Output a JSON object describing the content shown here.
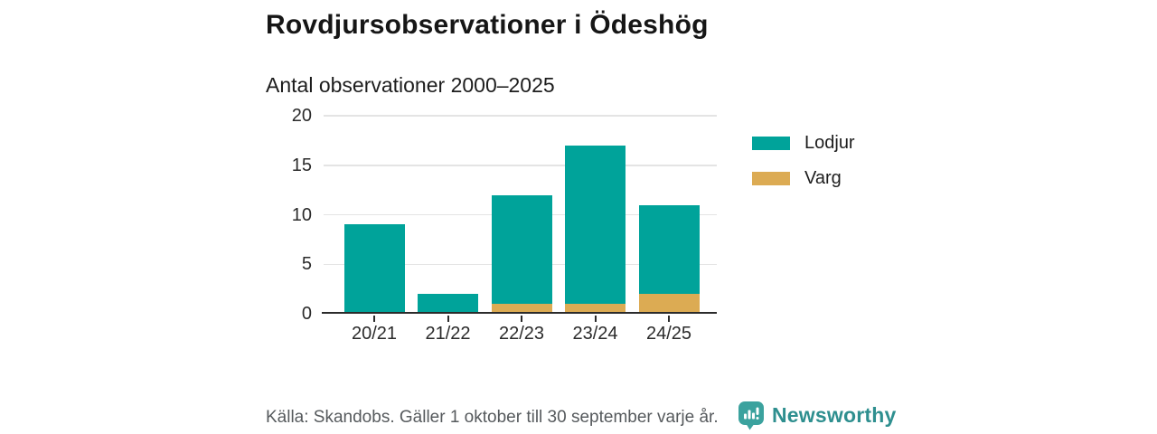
{
  "title": "Rovdjursobservationer i Ödeshög",
  "subtitle": "Antal observationer 2000–2025",
  "chart_data": {
    "type": "bar",
    "stacked": true,
    "title": "Rovdjursobservationer i Ödeshög",
    "subtitle": "Antal observationer 2000–2025",
    "categories": [
      "20/21",
      "21/22",
      "22/23",
      "23/24",
      "24/25"
    ],
    "series": [
      {
        "name": "Lodjur",
        "color": "#00a39a",
        "values": [
          9,
          2,
          11,
          16,
          9
        ]
      },
      {
        "name": "Varg",
        "color": "#dcab53",
        "values": [
          0,
          0,
          1,
          1,
          2
        ]
      }
    ],
    "stack_order_bottom_to_top": [
      "Varg",
      "Lodjur"
    ],
    "totals": [
      9,
      2,
      12,
      17,
      11
    ],
    "ylim": [
      0,
      20
    ],
    "yticks": [
      0,
      5,
      10,
      15,
      20
    ],
    "grid": true,
    "legend_position": "right"
  },
  "legend": {
    "items": [
      {
        "label": "Lodjur",
        "color": "#00a39a"
      },
      {
        "label": "Varg",
        "color": "#dcab53"
      }
    ]
  },
  "footer": {
    "source": "Källa: Skandobs. Gäller 1 oktober till 30 september varje år.",
    "brand": "Newsworthy"
  },
  "colors": {
    "bar_lodjur": "#00a39a",
    "bar_varg": "#dcab53",
    "axis_line": "#2b2b2b",
    "gridline": "#e4e4e4",
    "text_dark": "#161616",
    "text_gray": "#565a5d",
    "brand_teal": "#2e8f8f",
    "logo_bubble": "#3ba29e",
    "background": "#ffffff"
  }
}
